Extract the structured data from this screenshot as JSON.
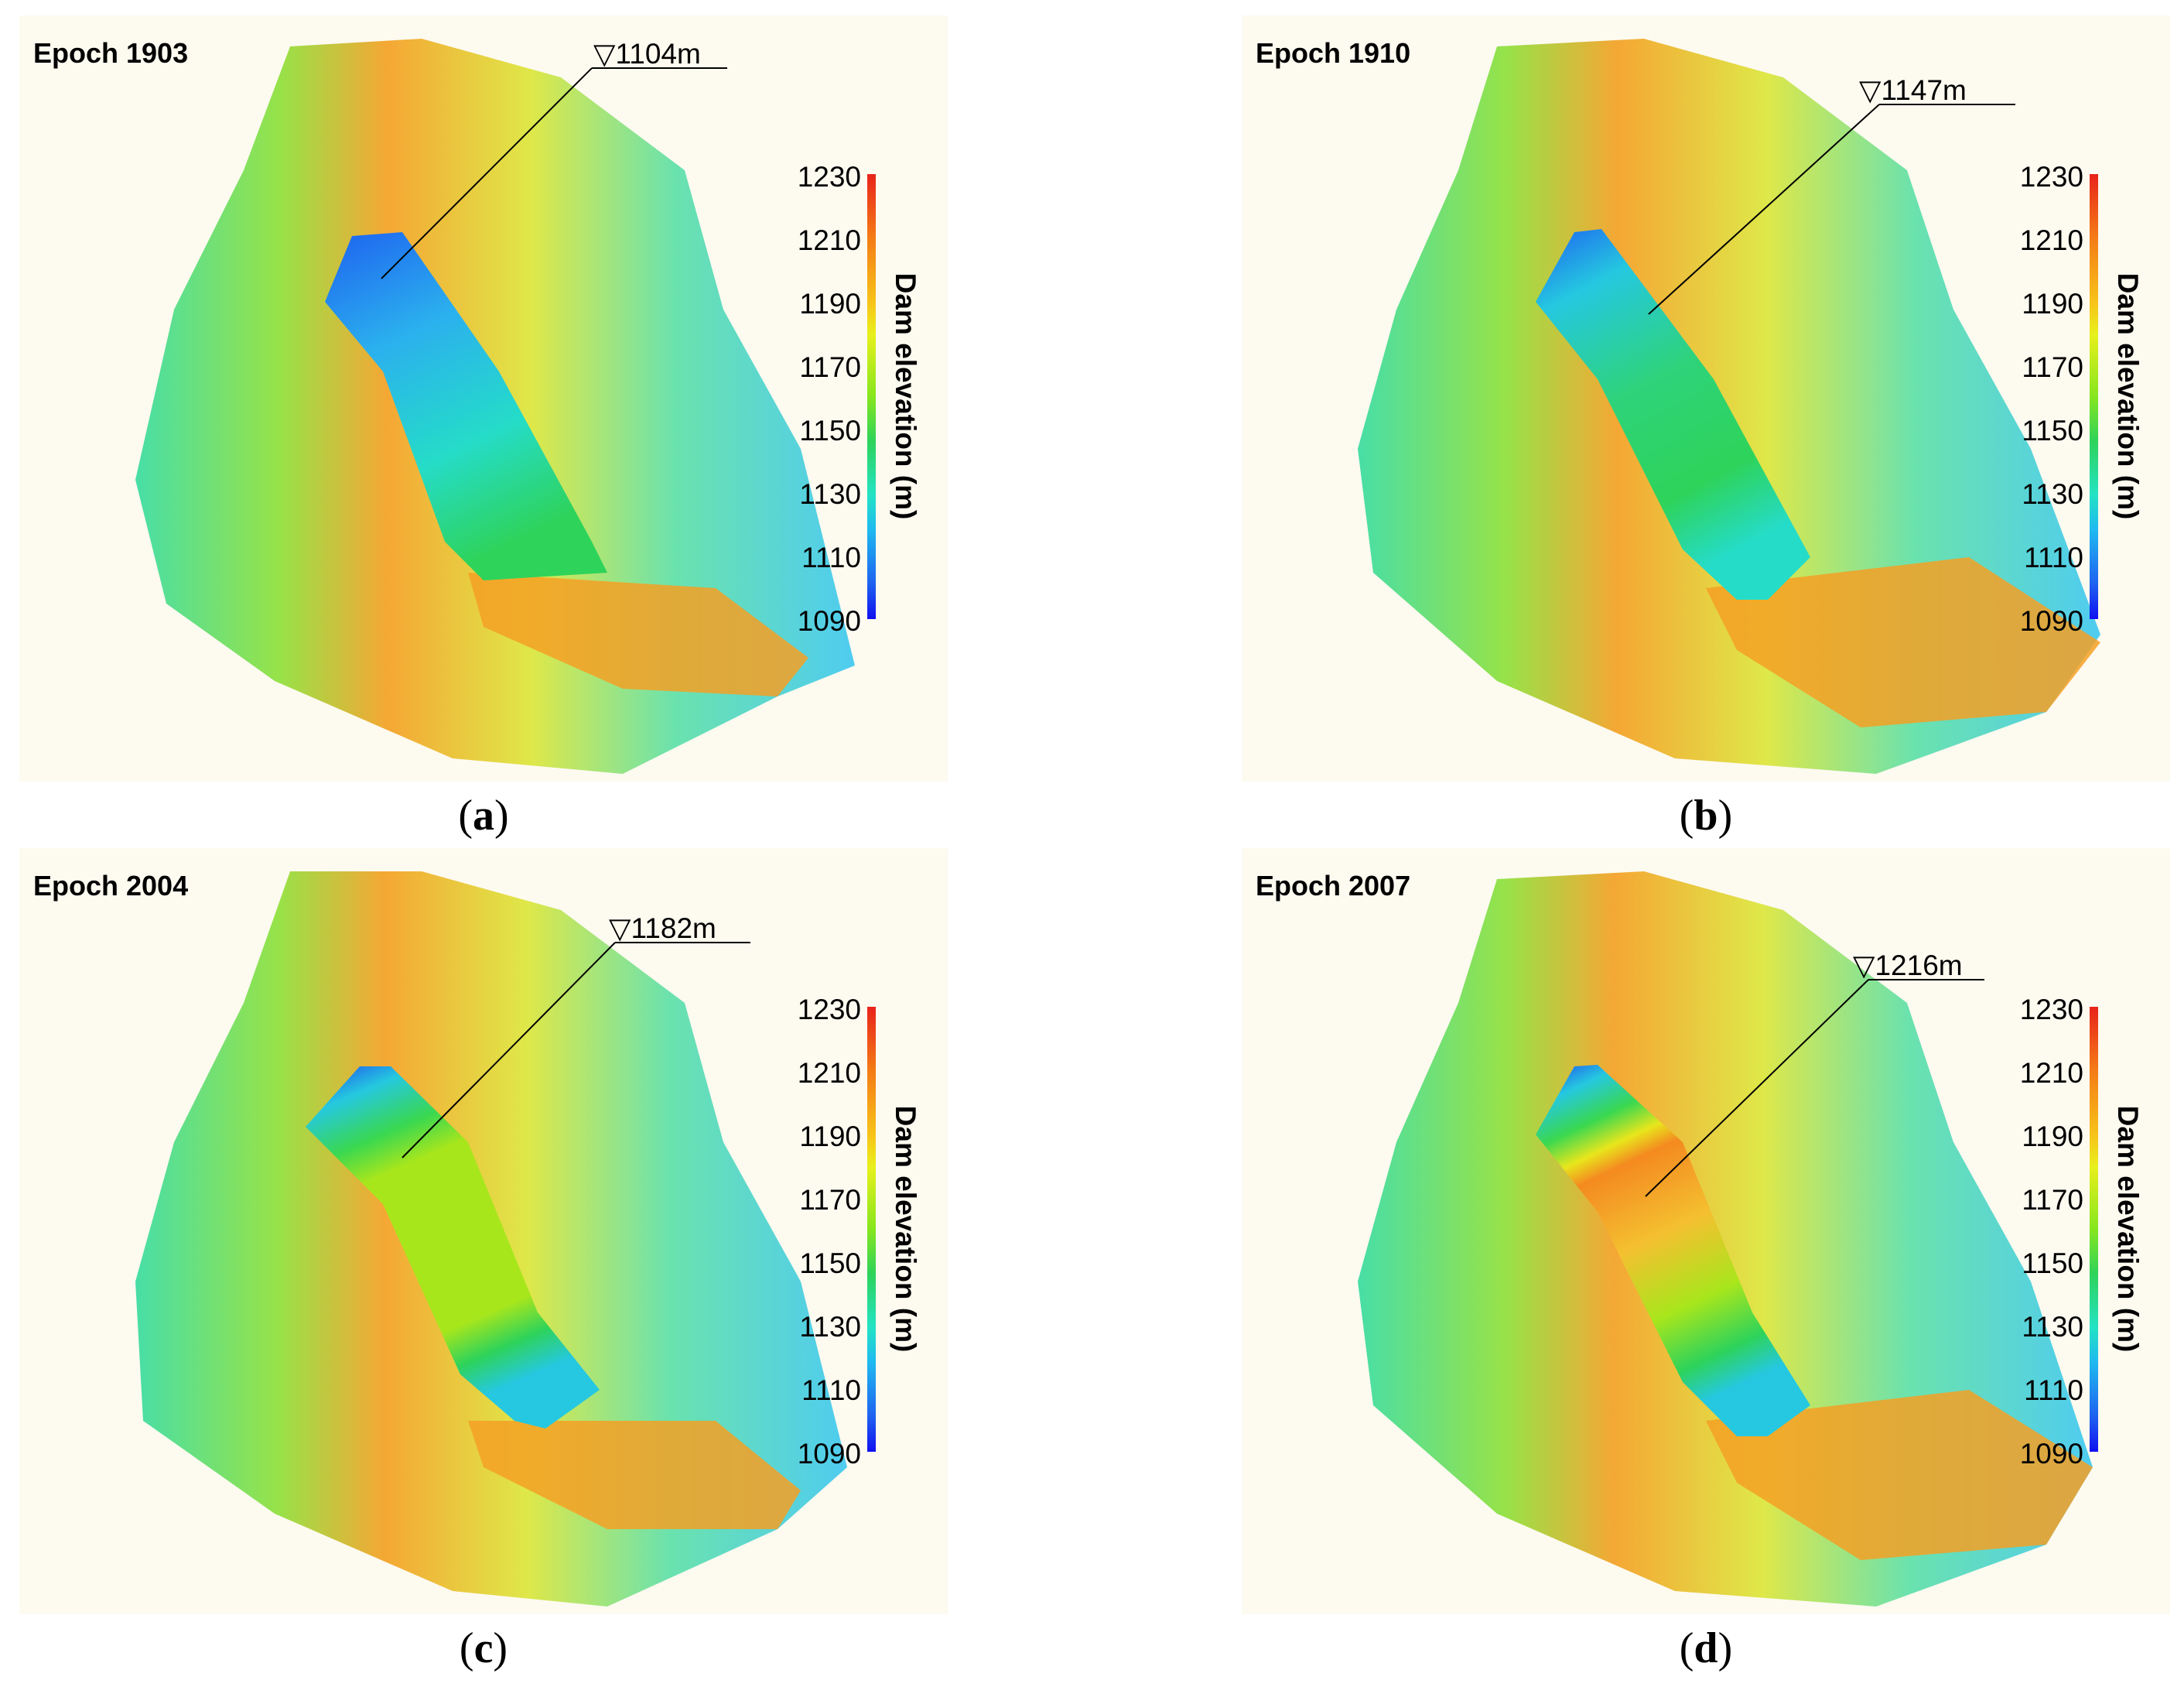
{
  "colorbar": {
    "title": "Dam elevation (m)",
    "ticks": [
      "1230",
      "1210",
      "1190",
      "1170",
      "1150",
      "1130",
      "1110",
      "1090"
    ],
    "min": 1090,
    "max": 1230
  },
  "panels": [
    {
      "id": "a",
      "epoch": "Epoch 1903",
      "water_level": "1104m",
      "caption_open": "(",
      "caption_letter": "a",
      "caption_close": ")"
    },
    {
      "id": "b",
      "epoch": "Epoch 1910",
      "water_level": "1147m",
      "caption_open": "(",
      "caption_letter": "b",
      "caption_close": ")"
    },
    {
      "id": "c",
      "epoch": "Epoch 2004",
      "water_level": "1182m",
      "caption_open": "(",
      "caption_letter": "c",
      "caption_close": ")"
    },
    {
      "id": "d",
      "epoch": "Epoch 2007",
      "water_level": "1216m",
      "caption_open": "(",
      "caption_letter": "d",
      "caption_close": ")"
    }
  ],
  "colors": {
    "background": "#fdfaf0",
    "low": "#1010f0",
    "mid": "#86e61e",
    "high": "#e8231b"
  }
}
